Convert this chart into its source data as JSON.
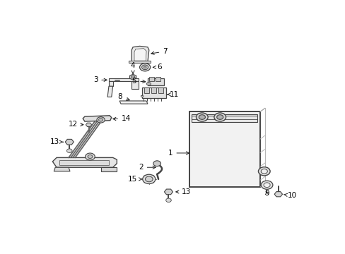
{
  "background_color": "#ffffff",
  "line_color": "#444444",
  "label_color": "#000000",
  "fig_width": 4.89,
  "fig_height": 3.6,
  "dpi": 100,
  "arrow_color": "#222222",
  "font_size": 7.5
}
